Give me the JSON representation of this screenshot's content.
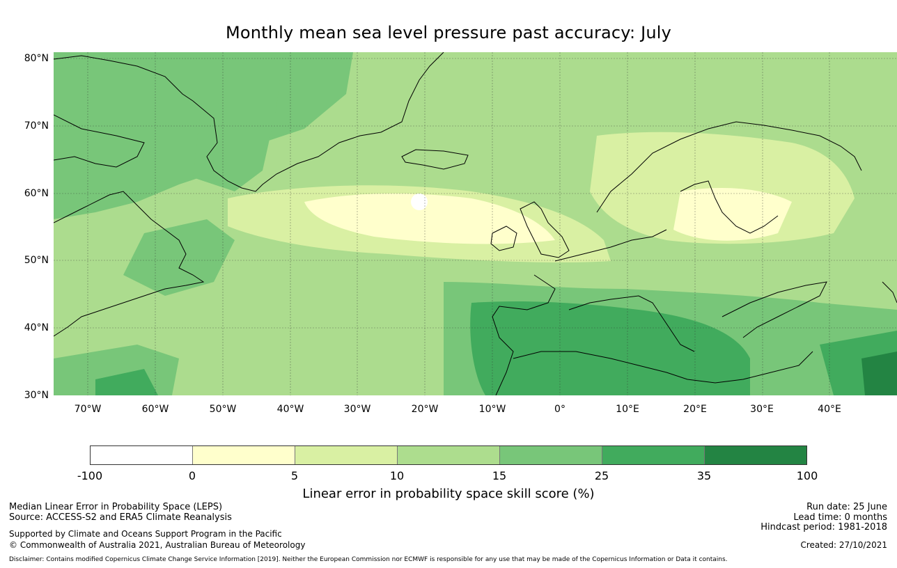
{
  "title": "Monthly mean sea level pressure past accuracy: July",
  "map": {
    "lat_labels": [
      "80°N",
      "70°N",
      "60°N",
      "50°N",
      "40°N",
      "30°N"
    ],
    "lon_labels": [
      "70°W",
      "60°W",
      "50°W",
      "40°W",
      "30°W",
      "20°W",
      "10°W",
      "0°",
      "10°E",
      "20°E",
      "30°E",
      "40°E"
    ],
    "extent": {
      "lon_min": -75,
      "lon_max": 50,
      "lat_min": 30,
      "lat_max": 81
    }
  },
  "colorbar": {
    "colors": [
      "#ffffff",
      "#ffffcc",
      "#d9f0a3",
      "#addd8e",
      "#78c679",
      "#41ab5d",
      "#238443"
    ],
    "ticks": [
      "-100",
      "0",
      "5",
      "10",
      "15",
      "25",
      "35",
      "100"
    ],
    "label": "Linear error in probability space skill score (%)"
  },
  "footer": {
    "left_line1": "Median Linear Error in Probability Space (LEPS)",
    "left_line2": "Source: ACCESS-S2 and ERA5 Climate Reanalysis",
    "left_line3": "Supported by Climate and Oceans Support Program in the Pacific",
    "left_line4": "© Commonwealth of Australia 2021, Australian Bureau of Meteorology",
    "right_line1": "Run date: 25 June",
    "right_line2": "Lead time: 0 months",
    "right_line3": "Hindcast period: 1981-2018",
    "right_line4": "Created: 27/10/2021",
    "disclaimer": "Disclaimer: Contains modified Copernicus Climate Change Service Information [2019]. Neither the European Commission nor ECMWF is responsible for any use that may be made of the Copernicus Information or Data it contains."
  }
}
